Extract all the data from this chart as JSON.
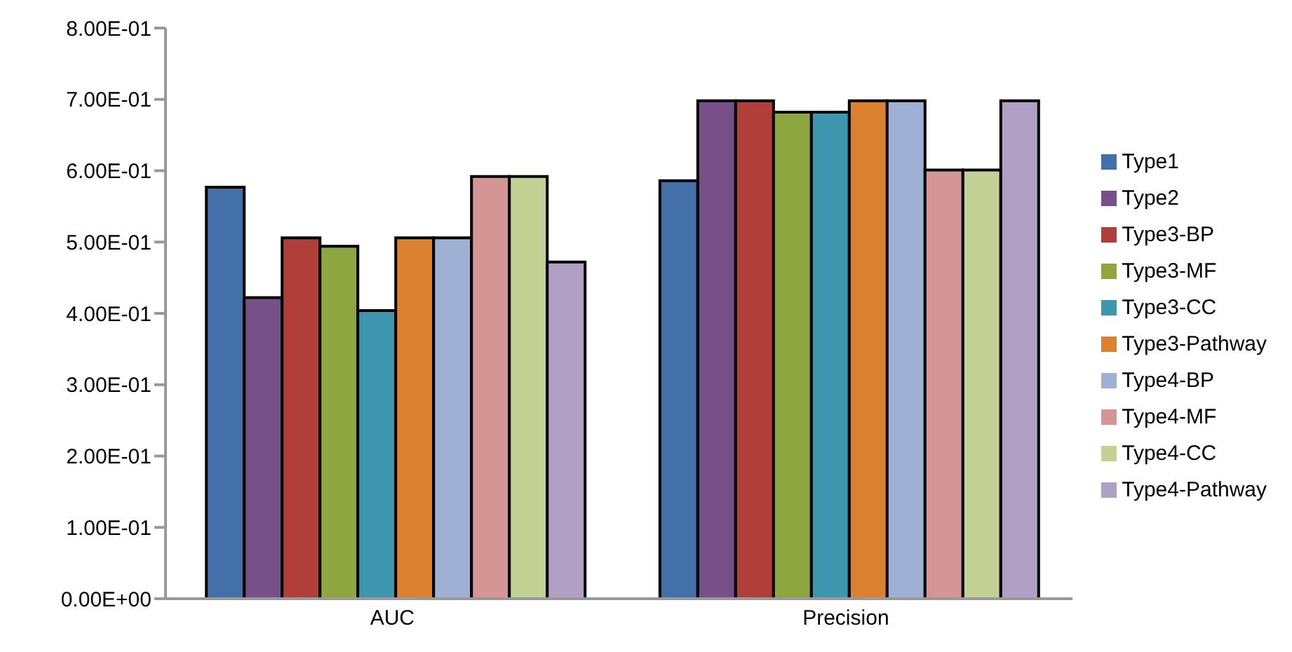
{
  "chart_data": {
    "type": "bar",
    "categories": [
      "AUC",
      "Precision"
    ],
    "series": [
      {
        "name": "Type1",
        "color": "#4470a9",
        "values": [
          0.577,
          0.586
        ]
      },
      {
        "name": "Type2",
        "color": "#775089",
        "values": [
          0.422,
          0.698
        ]
      },
      {
        "name": "Type3-BP",
        "color": "#b03f3c",
        "values": [
          0.506,
          0.698
        ]
      },
      {
        "name": "Type3-MF",
        "color": "#8ea63f",
        "values": [
          0.494,
          0.682
        ]
      },
      {
        "name": "Type3-CC",
        "color": "#3f97af",
        "values": [
          0.404,
          0.682
        ]
      },
      {
        "name": "Type3-Pathway",
        "color": "#db812f",
        "values": [
          0.506,
          0.698
        ]
      },
      {
        "name": "Type4-BP",
        "color": "#9eb0d4",
        "values": [
          0.506,
          0.698
        ]
      },
      {
        "name": "Type4-MF",
        "color": "#d69595",
        "values": [
          0.592,
          0.601
        ]
      },
      {
        "name": "Type4-CC",
        "color": "#c3d195",
        "values": [
          0.592,
          0.601
        ]
      },
      {
        "name": "Type4-Pathway",
        "color": "#b0a1c4",
        "values": [
          0.472,
          0.698
        ]
      }
    ],
    "ylim": [
      0,
      0.8
    ],
    "yticks": [
      {
        "value": 0,
        "label": "0.00E+00"
      },
      {
        "value": 0.1,
        "label": "1.00E-01"
      },
      {
        "value": 0.2,
        "label": "2.00E-01"
      },
      {
        "value": 0.3,
        "label": "3.00E-01"
      },
      {
        "value": 0.4,
        "label": "4.00E-01"
      },
      {
        "value": 0.5,
        "label": "5.00E-01"
      },
      {
        "value": 0.6,
        "label": "6.00E-01"
      },
      {
        "value": 0.7,
        "label": "7.00E-01"
      },
      {
        "value": 0.8,
        "label": "8.00E-01"
      }
    ],
    "grid": false,
    "legend": "right"
  }
}
